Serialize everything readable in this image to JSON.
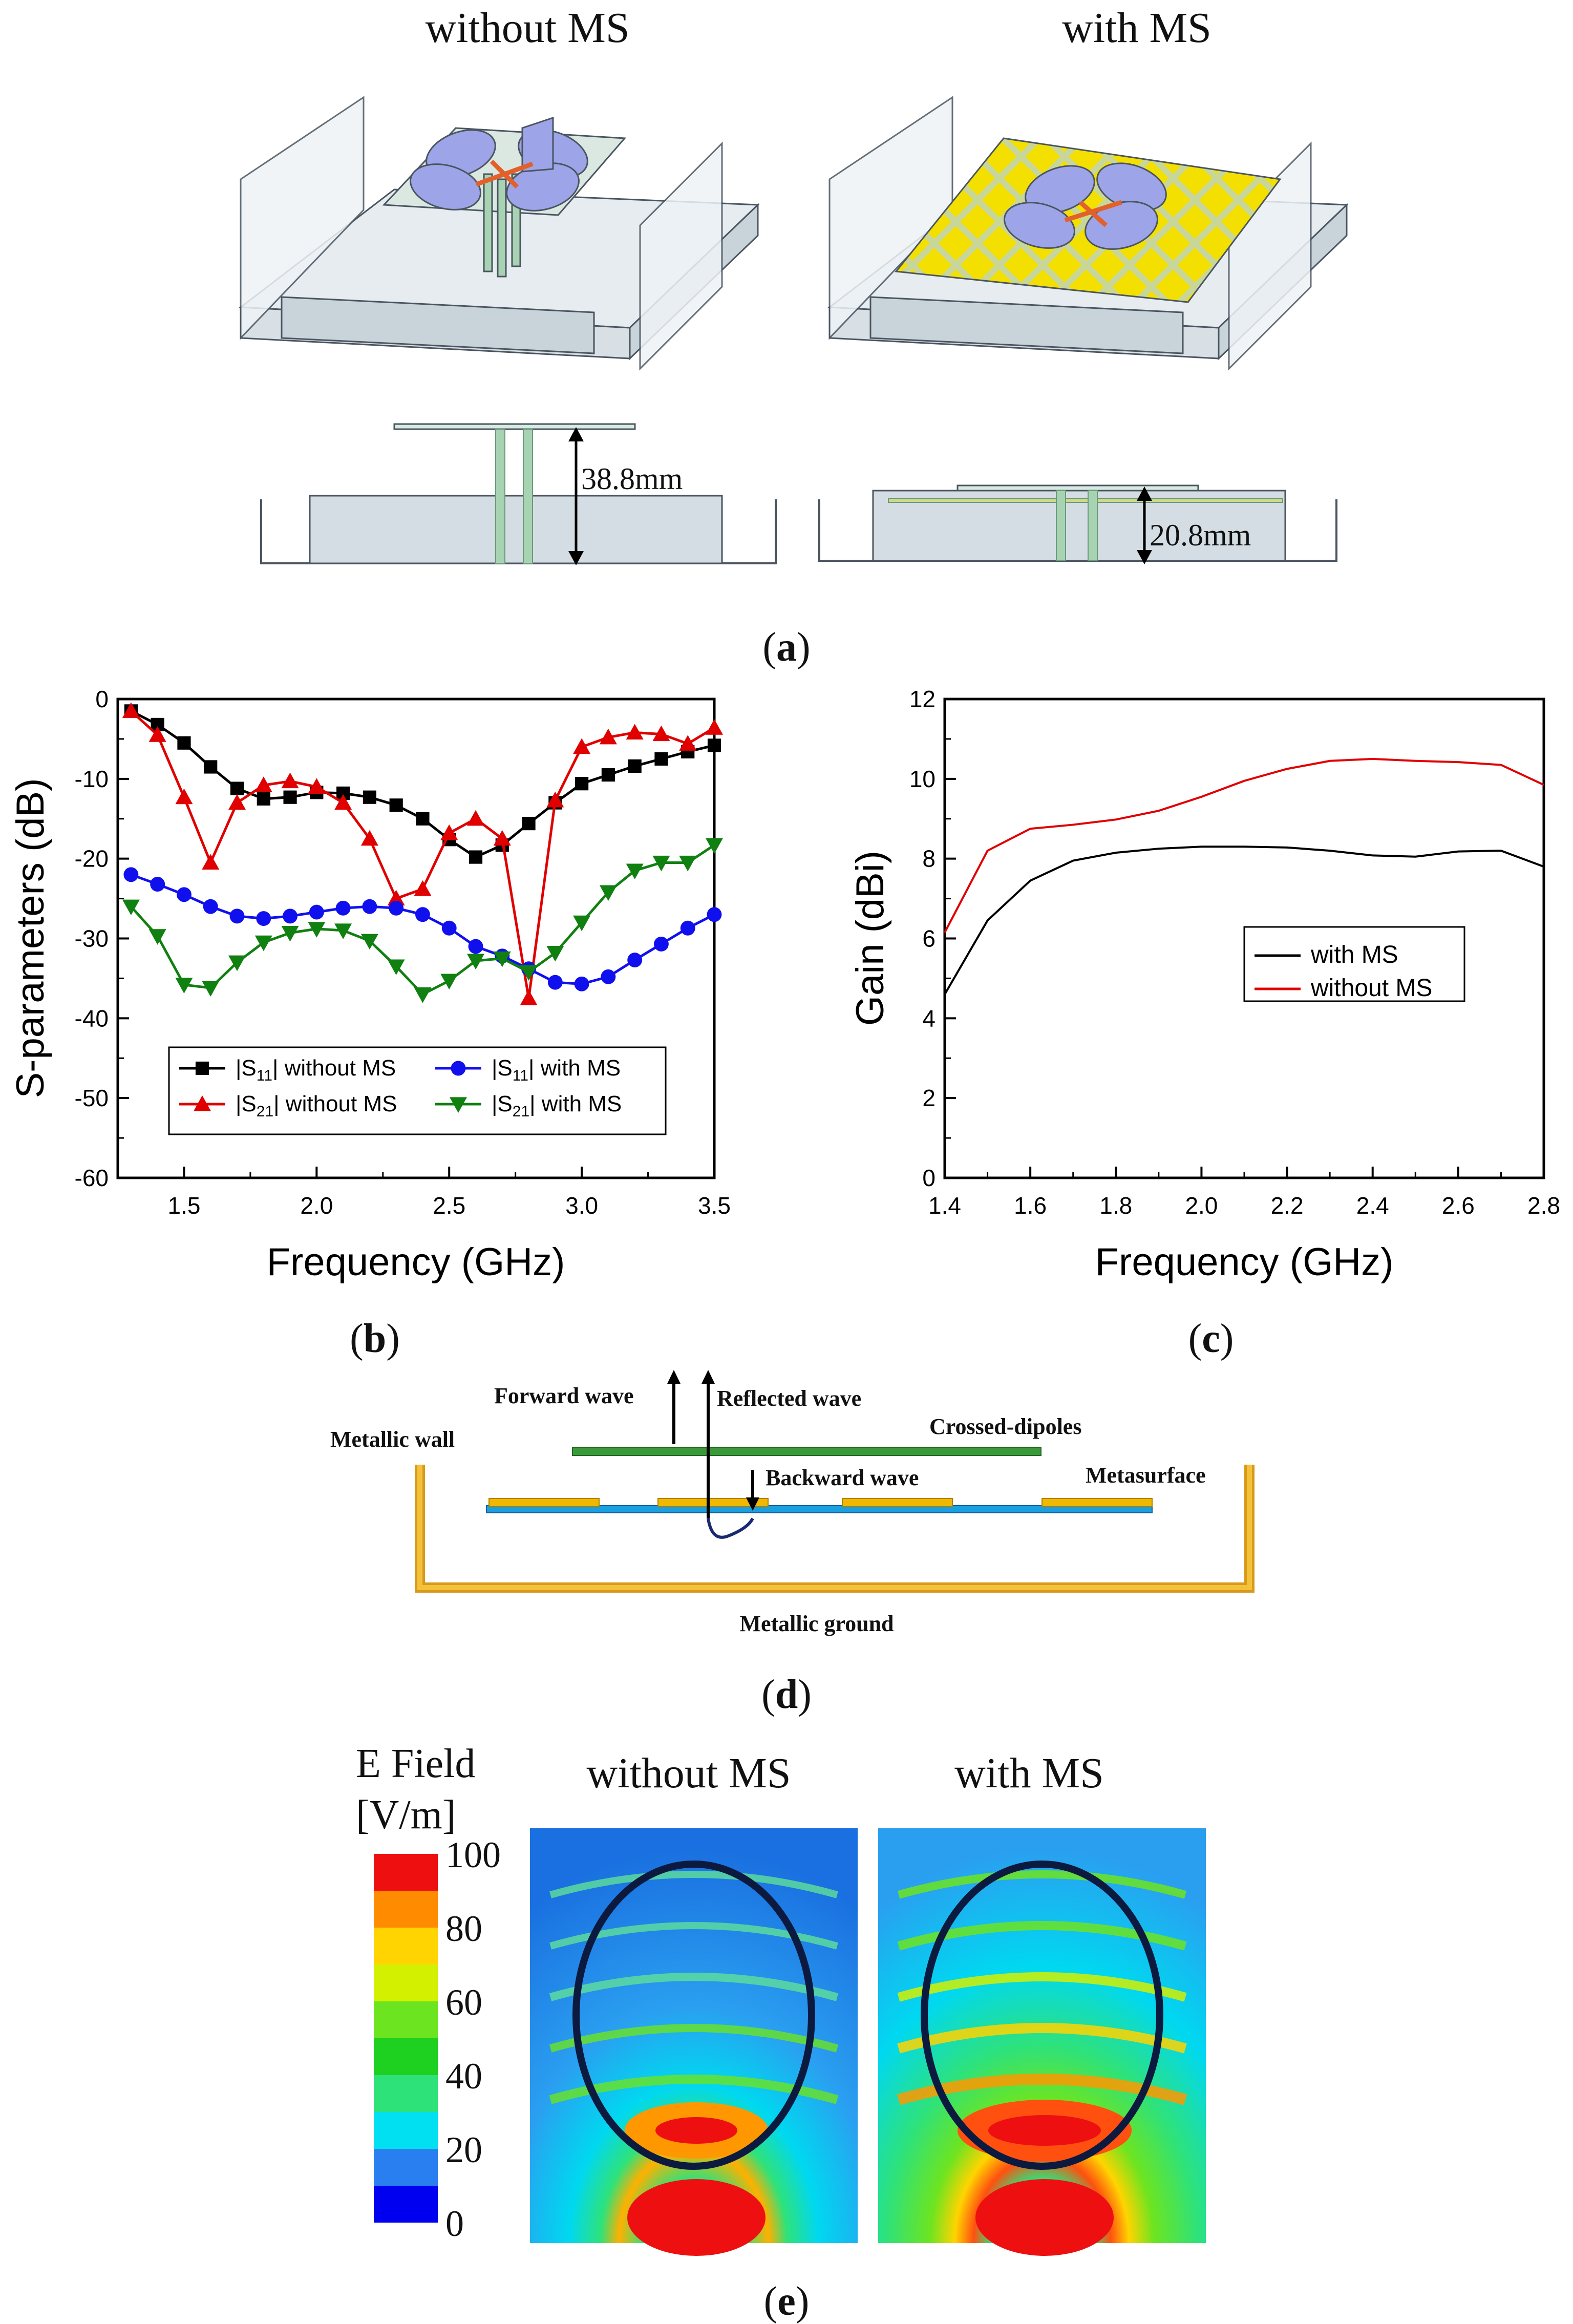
{
  "panel_a": {
    "title_left": "without MS",
    "title_right": "with MS",
    "dim_left": "38.8mm",
    "dim_right": "20.8mm",
    "caption": "a"
  },
  "chart_data": [
    {
      "id": "b",
      "type": "line",
      "xlabel": "Frequency (GHz)",
      "ylabel": "S-parameters (dB)",
      "xlim": [
        1.25,
        3.5
      ],
      "ylim": [
        -60,
        0
      ],
      "xticks": [
        1.5,
        2.0,
        2.5,
        3.0,
        3.5
      ],
      "yticks": [
        0,
        -10,
        -20,
        -30,
        -40,
        -50,
        -60
      ],
      "x": [
        1.3,
        1.4,
        1.5,
        1.6,
        1.7,
        1.8,
        1.9,
        2.0,
        2.1,
        2.2,
        2.3,
        2.4,
        2.5,
        2.6,
        2.7,
        2.8,
        2.9,
        3.0,
        3.1,
        3.2,
        3.3,
        3.4,
        3.5
      ],
      "series": [
        {
          "name": "|S11| without MS",
          "color": "#000000",
          "marker": "square",
          "values": [
            -1.5,
            -3.2,
            -5.5,
            -8.5,
            -11.2,
            -12.5,
            -12.3,
            -11.7,
            -11.8,
            -12.3,
            -13.3,
            -15.0,
            -17.6,
            -19.8,
            -18.3,
            -15.6,
            -13.0,
            -10.6,
            -9.5,
            -8.4,
            -7.5,
            -6.6,
            -5.8
          ]
        },
        {
          "name": "|S21| without MS",
          "color": "#e00000",
          "marker": "triangle-up",
          "values": [
            -1.5,
            -4.5,
            -12.3,
            -20.5,
            -13.0,
            -10.8,
            -10.3,
            -11.0,
            -13.0,
            -17.5,
            -25.0,
            -23.8,
            -16.8,
            -15.0,
            -17.5,
            -37.5,
            -12.7,
            -6.0,
            -4.8,
            -4.2,
            -4.4,
            -5.6,
            -3.6
          ]
        },
        {
          "name": "|S11| with MS",
          "color": "#1010ee",
          "marker": "circle",
          "values": [
            -22.0,
            -23.2,
            -24.5,
            -26.0,
            -27.2,
            -27.5,
            -27.2,
            -26.7,
            -26.2,
            -26.0,
            -26.2,
            -27.0,
            -28.7,
            -31.0,
            -32.2,
            -33.8,
            -35.5,
            -35.7,
            -34.8,
            -32.7,
            -30.7,
            -28.7,
            -27.0
          ]
        },
        {
          "name": "|S21| with MS",
          "color": "#108010",
          "marker": "triangle-down",
          "values": [
            -26.0,
            -29.7,
            -35.8,
            -36.2,
            -33.0,
            -30.5,
            -29.3,
            -28.8,
            -29.0,
            -30.3,
            -33.5,
            -37.0,
            -35.3,
            -32.8,
            -32.5,
            -34.2,
            -31.8,
            -28.0,
            -24.2,
            -21.5,
            -20.5,
            -20.5,
            -18.3
          ]
        }
      ],
      "legend_labels": [
        "|S11| without MS",
        "|S11| with MS",
        "|S21| without MS",
        "|S21| with MS"
      ],
      "legend_position": "bottom-left",
      "caption": "b"
    },
    {
      "id": "c",
      "type": "line",
      "xlabel": "Frequency (GHz)",
      "ylabel": "Gain (dBi)",
      "xlim": [
        1.4,
        2.8
      ],
      "ylim": [
        0,
        12
      ],
      "xticks": [
        1.4,
        1.6,
        1.8,
        2.0,
        2.2,
        2.4,
        2.6,
        2.8
      ],
      "yticks": [
        0,
        2,
        4,
        6,
        8,
        10,
        12
      ],
      "x": [
        1.4,
        1.5,
        1.6,
        1.7,
        1.8,
        1.9,
        2.0,
        2.1,
        2.2,
        2.3,
        2.4,
        2.5,
        2.6,
        2.7,
        2.8
      ],
      "series": [
        {
          "name": "with MS",
          "color": "#000000",
          "values": [
            4.6,
            6.45,
            7.45,
            7.95,
            8.15,
            8.25,
            8.3,
            8.3,
            8.28,
            8.2,
            8.08,
            8.05,
            8.18,
            8.2,
            7.8
          ]
        },
        {
          "name": "without MS",
          "color": "#e00000",
          "values": [
            6.15,
            8.2,
            8.75,
            8.85,
            8.98,
            9.2,
            9.55,
            9.95,
            10.25,
            10.45,
            10.5,
            10.45,
            10.42,
            10.35,
            9.85
          ]
        }
      ],
      "legend_position": "center-right",
      "caption": "c"
    }
  ],
  "panel_d": {
    "forward_wave": "Forward wave",
    "reflected_wave": "Reflected wave",
    "crossed_dipoles": "Crossed-dipoles",
    "metallic_wall": "Metallic wall",
    "backward_wave": "Backward wave",
    "metasurface": "Metasurface",
    "metallic_ground": "Metallic ground",
    "caption": "d"
  },
  "panel_e": {
    "scale_title_1": "E Field",
    "scale_title_2": "[V/m]",
    "title_left": "without MS",
    "title_right": "with MS",
    "scale_labels": [
      "100",
      "80",
      "60",
      "40",
      "20",
      "0"
    ],
    "scale_colors": [
      "#ee1010",
      "#ff8c00",
      "#ffd400",
      "#d2f000",
      "#6de420",
      "#1ed020",
      "#2ee27a",
      "#00e0f0",
      "#2a7ff0",
      "#0000f0"
    ],
    "caption": "e"
  }
}
